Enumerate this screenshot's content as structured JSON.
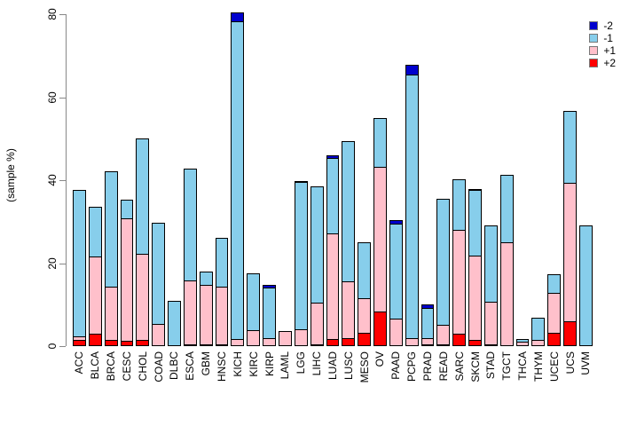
{
  "figure": {
    "ylabel": "(sample %)"
  },
  "chart_data": {
    "type": "bar",
    "stacked": true,
    "title": "",
    "xlabel": "",
    "ylabel": "(sample %)",
    "ylim": [
      0,
      80
    ],
    "yticks": [
      0,
      20,
      40,
      60,
      80
    ],
    "grid": false,
    "legend_position": "top-right",
    "legend_order": [
      "-2",
      "-1",
      "+1",
      "+2"
    ],
    "stack_order_bottom_to_top": [
      "+2",
      "+1",
      "-1",
      "-2"
    ],
    "categories": [
      "ACC",
      "BLCA",
      "BRCA",
      "CESC",
      "CHOL",
      "COAD",
      "DLBC",
      "ESCA",
      "GBM",
      "HNSC",
      "KICH",
      "KIRC",
      "KIRP",
      "LAML",
      "LGG",
      "LIHC",
      "LUAD",
      "LUSC",
      "MESO",
      "OV",
      "PAAD",
      "PCPG",
      "PRAD",
      "READ",
      "SARC",
      "SKCM",
      "STAD",
      "TGCT",
      "THCA",
      "THYM",
      "UCEC",
      "UCS",
      "UVM"
    ],
    "series": [
      {
        "name": "+2",
        "color": "#FF0000",
        "values": [
          1.5,
          3.0,
          1.5,
          1.2,
          1.5,
          0,
          0,
          0.4,
          0.4,
          0.4,
          0,
          0,
          0,
          0,
          0,
          0.3,
          1.8,
          2.0,
          3.2,
          8.4,
          0,
          0,
          0.3,
          0.2,
          3.0,
          1.4,
          0.4,
          0,
          0,
          0,
          3.3,
          5.9,
          0
        ]
      },
      {
        "name": "+1",
        "color": "#FFC0CB",
        "values": [
          1.0,
          18.9,
          13.0,
          29.8,
          21.0,
          5.4,
          0,
          15.7,
          14.5,
          14.2,
          1.7,
          3.9,
          2.0,
          3.6,
          4.0,
          10.3,
          25.6,
          13.9,
          8.6,
          35.1,
          6.6,
          2.0,
          1.7,
          5.0,
          25.2,
          20.7,
          10.5,
          25.0,
          1.0,
          1.6,
          9.7,
          33.7,
          0
        ]
      },
      {
        "name": "-1",
        "color": "#87CEEB",
        "values": [
          35.5,
          12.1,
          28.0,
          4.8,
          27.9,
          24.6,
          10.9,
          27.0,
          3.5,
          11.8,
          76.9,
          13.9,
          12.3,
          0,
          35.7,
          28.3,
          18.3,
          34.0,
          13.7,
          12.0,
          23.2,
          63.7,
          7.5,
          30.6,
          12.4,
          15.9,
          18.5,
          16.6,
          1.0,
          5.4,
          4.8,
          17.6,
          29.1
        ]
      },
      {
        "name": "-2",
        "color": "#0000CD",
        "values": [
          0,
          0,
          0,
          0,
          0,
          0,
          0,
          0,
          0,
          0,
          2.2,
          0,
          0.9,
          0,
          0.3,
          0,
          0.9,
          0,
          0,
          0,
          1.0,
          2.5,
          1.0,
          0,
          0,
          0.5,
          0,
          0,
          0,
          0,
          0,
          0,
          0
        ]
      }
    ]
  }
}
